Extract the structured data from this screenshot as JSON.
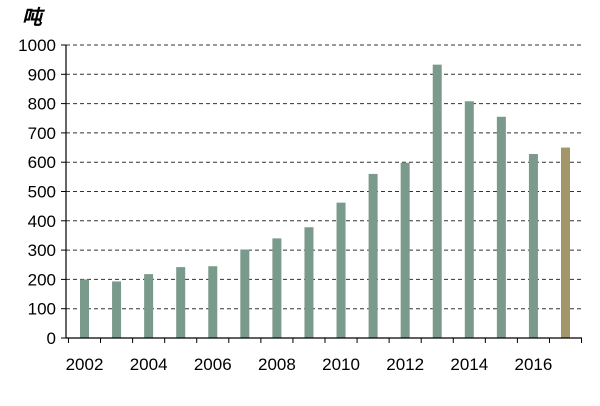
{
  "chart_data": {
    "type": "bar",
    "unit_label": "吨",
    "x": [
      2002,
      2003,
      2004,
      2005,
      2006,
      2007,
      2008,
      2009,
      2010,
      2011,
      2012,
      2013,
      2014,
      2015,
      2016,
      2017
    ],
    "values": [
      200,
      193,
      218,
      242,
      245,
      302,
      340,
      378,
      462,
      560,
      598,
      933,
      808,
      755,
      628,
      650
    ],
    "x_tick_labels": [
      "2002",
      "2004",
      "2006",
      "2008",
      "2010",
      "2012",
      "2014",
      "2016"
    ],
    "y_tick_labels": [
      "0",
      "100",
      "200",
      "300",
      "400",
      "500",
      "600",
      "700",
      "800",
      "900",
      "1000"
    ],
    "ylim": [
      0,
      1000
    ],
    "grid": "horizontal dashed",
    "colors": {
      "bar": "#7a9a8c",
      "highlight_bar": "#a3976a",
      "grid": "#333333",
      "axis": "#000000"
    },
    "highlighted_index": 15
  }
}
